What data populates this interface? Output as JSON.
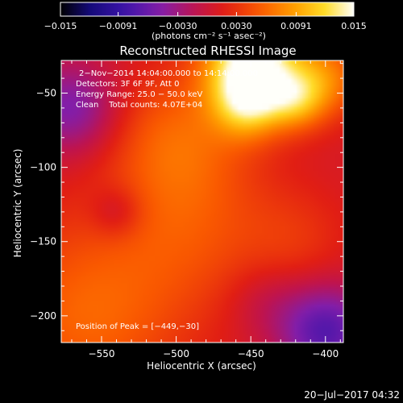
{
  "chart_data": {
    "type": "heatmap",
    "title": "Reconstructed RHESSI Image",
    "xlabel": "Heliocentric X (arcsec)",
    "ylabel": "Heliocentric Y (arcsec)",
    "xlim": [
      -577,
      -388
    ],
    "ylim": [
      -218,
      -28
    ],
    "x_ticks": [
      -550,
      -500,
      -450,
      -400
    ],
    "x_tick_labels": [
      "−550",
      "−500",
      "−450",
      "−400"
    ],
    "y_ticks": [
      -50,
      -100,
      -150,
      -200
    ],
    "y_tick_labels": [
      "−50",
      "−100",
      "−150",
      "−200"
    ],
    "colorbar": {
      "range": [
        -0.015,
        0.015
      ],
      "ticks": [
        -0.015,
        -0.0091,
        -0.003,
        0.003,
        0.0091,
        0.015
      ],
      "tick_labels": [
        "−0.015",
        "−0.0091",
        "−0.0030",
        "0.0030",
        "0.0091",
        "0.015"
      ],
      "units_label": "(photons cm⁻² s⁻¹ asec⁻²)"
    },
    "annotations": [
      "2−Nov−2014 14:04:00.000 to 14:14:00.000",
      "Detectors: 3F 6F 9F, Att 0",
      "Energy Range: 25.0 − 50.0 keV",
      "Clean    Total counts: 4.07E+04"
    ],
    "peak_label": "Position of Peak = [−449,−30]",
    "peak_position": [
      -449,
      -30
    ],
    "components": [
      {
        "x": -449,
        "y": -30,
        "sigma": 22,
        "amplitude": 0.015
      },
      {
        "x": -452,
        "y": -58,
        "sigma": 16,
        "amplitude": 0.0075
      },
      {
        "x": -420,
        "y": -55,
        "sigma": 14,
        "amplitude": 0.0065
      },
      {
        "x": -400,
        "y": -40,
        "sigma": 18,
        "amplitude": 0.006
      },
      {
        "x": -500,
        "y": -80,
        "sigma": 32,
        "amplitude": 0.0045
      },
      {
        "x": -490,
        "y": -140,
        "sigma": 40,
        "amplitude": 0.0035
      },
      {
        "x": -560,
        "y": -200,
        "sigma": 45,
        "amplitude": 0.005
      },
      {
        "x": -420,
        "y": -150,
        "sigma": 25,
        "amplitude": 0.002
      },
      {
        "x": -570,
        "y": -60,
        "sigma": 22,
        "amplitude": -0.006
      },
      {
        "x": -540,
        "y": -130,
        "sigma": 12,
        "amplitude": -0.003
      },
      {
        "x": -400,
        "y": -210,
        "sigma": 22,
        "amplitude": -0.008
      },
      {
        "x": -440,
        "y": -190,
        "sigma": 18,
        "amplitude": -0.002
      }
    ],
    "colormap": "black-blue-purple-red-orange-yellow-white"
  },
  "footer": {
    "timestamp": "20−Jul−2017 04:32"
  }
}
